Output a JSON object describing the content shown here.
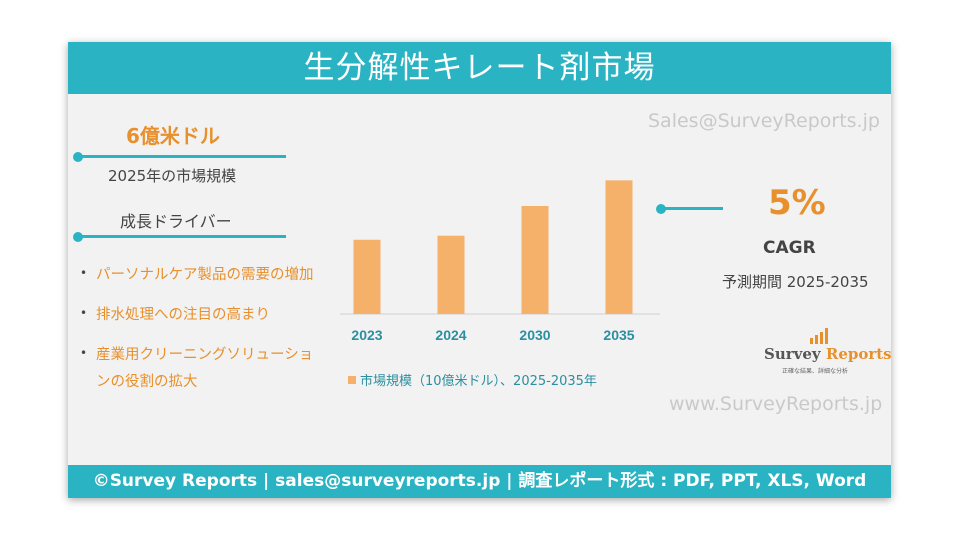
{
  "header": {
    "title": "生分解性キレート剤市場"
  },
  "watermark": {
    "email": "Sales@SurveyReports.jp",
    "url": "www.SurveyReports.jp"
  },
  "left": {
    "market_value": "6億米ドル",
    "market_label": "2025年の市場規模",
    "drivers_title": "成長ドライバー",
    "drivers": [
      "パーソナルケア製品の需要の増加",
      "排水処理への注目の高まり",
      "産業用クリーニングソリューショ",
      "ンの役割の拡大"
    ]
  },
  "right": {
    "cagr_value": "5%",
    "cagr_label": "CAGR",
    "period": "予測期間 2025-2035"
  },
  "logo": {
    "name_survey": "Survey",
    "name_reports": " Reports",
    "tagline": "正確な結果、詳細な分析"
  },
  "footer": {
    "text": "©Survey Reports | sales@surveyreports.jp | 調査レポート形式 : PDF, PPT, XLS, Word"
  },
  "colors": {
    "accent": "#2ab3c2",
    "bar": "#f5b06a",
    "orange": "#e8902b"
  },
  "chart_data": {
    "type": "bar",
    "categories": [
      "2023",
      "2024",
      "2030",
      "2035"
    ],
    "values": [
      0.55,
      0.58,
      0.8,
      0.99
    ],
    "legend": "市場規模（10億米ドル）、2025-2035年",
    "ylim": [
      0,
      1.0
    ]
  }
}
